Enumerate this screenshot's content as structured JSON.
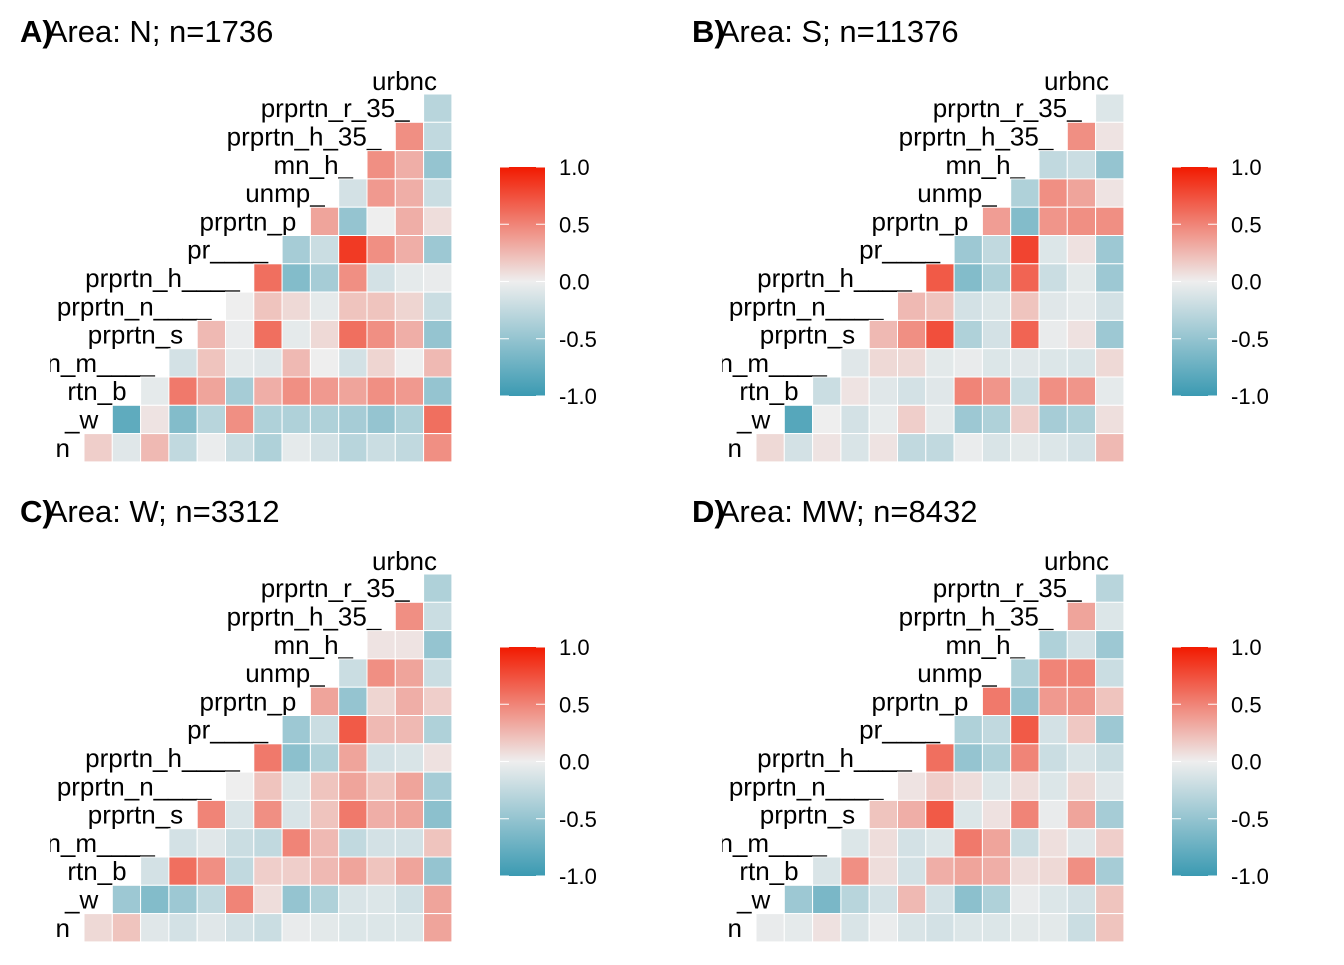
{
  "colors": {
    "low": "#3B9AB2",
    "mid": "#EEEEEE",
    "high": "#F21A00"
  },
  "chart_data": [
    {
      "type": "heatmap",
      "tag": "A)",
      "title": "Area: N; n=1736",
      "top_label": "urbnc",
      "row_labels": [
        "prprtn_r_35_",
        "prprtn_h_35_",
        "mn_h_",
        "unmp_",
        "prprtn_p",
        "pr____",
        "prprtn_h____",
        "prprtn_n____",
        "prprtn_s",
        "n_m____",
        "rtn_b",
        "_w",
        "n"
      ],
      "legend_ticks": [
        "1.0",
        "0.5",
        "0.0",
        "-0.5",
        "-1.0"
      ],
      "scale_range": [
        -1,
        1
      ],
      "rows": [
        [
          -0.3
        ],
        [
          0.45,
          -0.25
        ],
        [
          0.45,
          0.3,
          -0.5
        ],
        [
          -0.15,
          0.4,
          0.3,
          -0.2
        ],
        [
          0.35,
          -0.5,
          0.0,
          0.3,
          0.08
        ],
        [
          -0.4,
          -0.2,
          0.85,
          0.45,
          0.3,
          -0.45
        ],
        [
          0.6,
          -0.6,
          -0.4,
          0.45,
          -0.15,
          -0.05,
          -0.03
        ],
        [
          0.0,
          0.2,
          0.1,
          -0.05,
          0.2,
          0.2,
          0.12,
          -0.2
        ],
        [
          0.25,
          -0.02,
          0.6,
          -0.05,
          0.1,
          0.6,
          0.45,
          0.3,
          -0.5
        ],
        [
          -0.15,
          0.2,
          -0.05,
          -0.08,
          0.25,
          0.0,
          -0.15,
          0.12,
          0.0,
          0.25
        ],
        [
          -0.05,
          0.55,
          0.35,
          -0.4,
          0.3,
          0.45,
          0.4,
          0.35,
          0.45,
          0.4,
          -0.5
        ],
        [
          -0.8,
          0.05,
          -0.6,
          -0.3,
          0.45,
          -0.35,
          -0.35,
          -0.35,
          -0.4,
          -0.5,
          -0.35,
          0.6
        ],
        [
          0.15,
          -0.08,
          0.25,
          -0.25,
          -0.02,
          -0.2,
          -0.35,
          -0.05,
          -0.15,
          -0.3,
          -0.2,
          -0.25,
          0.45
        ]
      ]
    },
    {
      "type": "heatmap",
      "tag": "B)",
      "title": "Area: S; n=11376",
      "top_label": "urbnc",
      "row_labels": [
        "prprtn_r_35_",
        "prprtn_h_35_",
        "mn_h_",
        "unmp_",
        "prprtn_p",
        "pr____",
        "prprtn_h____",
        "prprtn_n____",
        "prprtn_s",
        "n_m____",
        "rtn_b",
        "_w",
        "n"
      ],
      "legend_ticks": [
        "1.0",
        "0.5",
        "0.0",
        "-0.5",
        "-1.0"
      ],
      "scale_range": [
        -1,
        1
      ],
      "rows": [
        [
          -0.1
        ],
        [
          0.45,
          0.05
        ],
        [
          -0.25,
          -0.2,
          -0.5
        ],
        [
          -0.35,
          0.45,
          0.35,
          0.05
        ],
        [
          0.38,
          -0.6,
          0.42,
          0.45,
          0.45
        ],
        [
          -0.45,
          -0.25,
          0.8,
          -0.1,
          0.06,
          -0.45
        ],
        [
          0.7,
          -0.6,
          -0.35,
          0.65,
          -0.2,
          -0.06,
          -0.45
        ],
        [
          0.25,
          0.2,
          -0.15,
          -0.1,
          0.2,
          -0.08,
          -0.05,
          -0.15
        ],
        [
          0.25,
          0.45,
          0.75,
          -0.35,
          -0.15,
          0.65,
          -0.03,
          0.06,
          -0.45
        ],
        [
          -0.08,
          0.1,
          0.1,
          -0.06,
          -0.03,
          -0.1,
          -0.08,
          -0.1,
          -0.12,
          0.1
        ],
        [
          -0.2,
          0.05,
          -0.08,
          -0.15,
          -0.08,
          0.5,
          0.42,
          -0.2,
          0.45,
          0.42,
          -0.05
        ],
        [
          -0.85,
          0.0,
          -0.15,
          -0.04,
          0.15,
          -0.05,
          -0.45,
          -0.35,
          0.15,
          -0.4,
          -0.35,
          0.07
        ],
        [
          0.1,
          -0.15,
          0.05,
          -0.12,
          0.05,
          -0.25,
          -0.25,
          -0.02,
          -0.12,
          -0.06,
          -0.1,
          -0.15,
          0.25
        ]
      ]
    },
    {
      "type": "heatmap",
      "tag": "C)",
      "title": "Area: W; n=3312",
      "top_label": "urbnc",
      "row_labels": [
        "prprtn_r_35_",
        "prprtn_h_35_",
        "mn_h_",
        "unmp_",
        "prprtn_p",
        "pr____",
        "prprtn_h____",
        "prprtn_n____",
        "prprtn_s",
        "n_m____",
        "rtn_b",
        "_w",
        "n"
      ],
      "legend_ticks": [
        "1.0",
        "0.5",
        "0.0",
        "-0.5",
        "-1.0"
      ],
      "scale_range": [
        -1,
        1
      ],
      "rows": [
        [
          -0.35
        ],
        [
          0.45,
          -0.2
        ],
        [
          0.05,
          0.05,
          -0.5
        ],
        [
          -0.2,
          0.45,
          0.35,
          -0.2
        ],
        [
          0.35,
          -0.5,
          0.12,
          0.3,
          0.15
        ],
        [
          -0.45,
          -0.2,
          0.7,
          0.25,
          0.25,
          -0.35
        ],
        [
          0.55,
          -0.55,
          -0.35,
          0.35,
          -0.15,
          -0.12,
          0.06
        ],
        [
          0.0,
          0.2,
          -0.1,
          0.2,
          0.35,
          0.2,
          0.35,
          -0.4
        ],
        [
          0.5,
          -0.12,
          0.45,
          -0.12,
          0.2,
          0.55,
          0.3,
          0.35,
          -0.55
        ],
        [
          -0.15,
          -0.08,
          -0.2,
          -0.25,
          0.5,
          0.25,
          -0.25,
          -0.15,
          -0.15,
          0.2
        ],
        [
          -0.15,
          0.6,
          0.45,
          -0.25,
          0.15,
          0.15,
          0.25,
          0.35,
          0.2,
          0.35,
          -0.5
        ],
        [
          -0.45,
          -0.6,
          -0.45,
          -0.25,
          0.5,
          0.08,
          -0.5,
          -0.35,
          -0.12,
          -0.1,
          -0.17,
          0.35
        ],
        [
          0.1,
          0.2,
          -0.08,
          -0.15,
          -0.08,
          -0.15,
          -0.2,
          -0.03,
          -0.06,
          -0.1,
          -0.1,
          -0.1,
          0.35
        ]
      ]
    },
    {
      "type": "heatmap",
      "tag": "D)",
      "title": "Area: MW; n=8432",
      "top_label": "urbnc",
      "row_labels": [
        "prprtn_r_35_",
        "prprtn_h_35_",
        "mn_h_",
        "unmp_",
        "prprtn_p",
        "pr____",
        "prprtn_h____",
        "prprtn_n____",
        "prprtn_s",
        "n_m____",
        "rtn_b",
        "_w",
        "n"
      ],
      "legend_ticks": [
        "1.0",
        "0.5",
        "0.0",
        "-0.5",
        "-1.0"
      ],
      "scale_range": [
        -1,
        1
      ],
      "rows": [
        [
          -0.3
        ],
        [
          0.35,
          -0.1
        ],
        [
          -0.35,
          -0.15,
          -0.45
        ],
        [
          -0.35,
          0.5,
          0.5,
          -0.2
        ],
        [
          0.55,
          -0.5,
          0.4,
          0.42,
          0.2
        ],
        [
          -0.35,
          -0.25,
          0.7,
          -0.15,
          0.18,
          -0.45
        ],
        [
          0.6,
          -0.5,
          -0.35,
          0.5,
          -0.2,
          -0.12,
          -0.2
        ],
        [
          0.05,
          0.15,
          0.08,
          -0.1,
          0.08,
          -0.1,
          0.1,
          -0.08
        ],
        [
          0.2,
          0.3,
          0.7,
          -0.1,
          0.06,
          0.5,
          -0.03,
          0.35,
          -0.4
        ],
        [
          -0.1,
          0.08,
          -0.15,
          -0.1,
          0.55,
          0.35,
          -0.2,
          0.07,
          -0.08,
          0.15
        ],
        [
          -0.12,
          0.45,
          0.08,
          -0.15,
          0.3,
          0.35,
          0.3,
          0.08,
          0.1,
          0.45,
          -0.4
        ],
        [
          -0.45,
          -0.65,
          -0.3,
          -0.15,
          0.25,
          -0.15,
          -0.55,
          -0.35,
          -0.03,
          -0.1,
          -0.15,
          0.2
        ],
        [
          -0.03,
          -0.05,
          0.06,
          -0.12,
          -0.02,
          -0.12,
          -0.15,
          -0.1,
          -0.1,
          -0.06,
          -0.06,
          -0.2,
          0.2
        ]
      ]
    }
  ]
}
